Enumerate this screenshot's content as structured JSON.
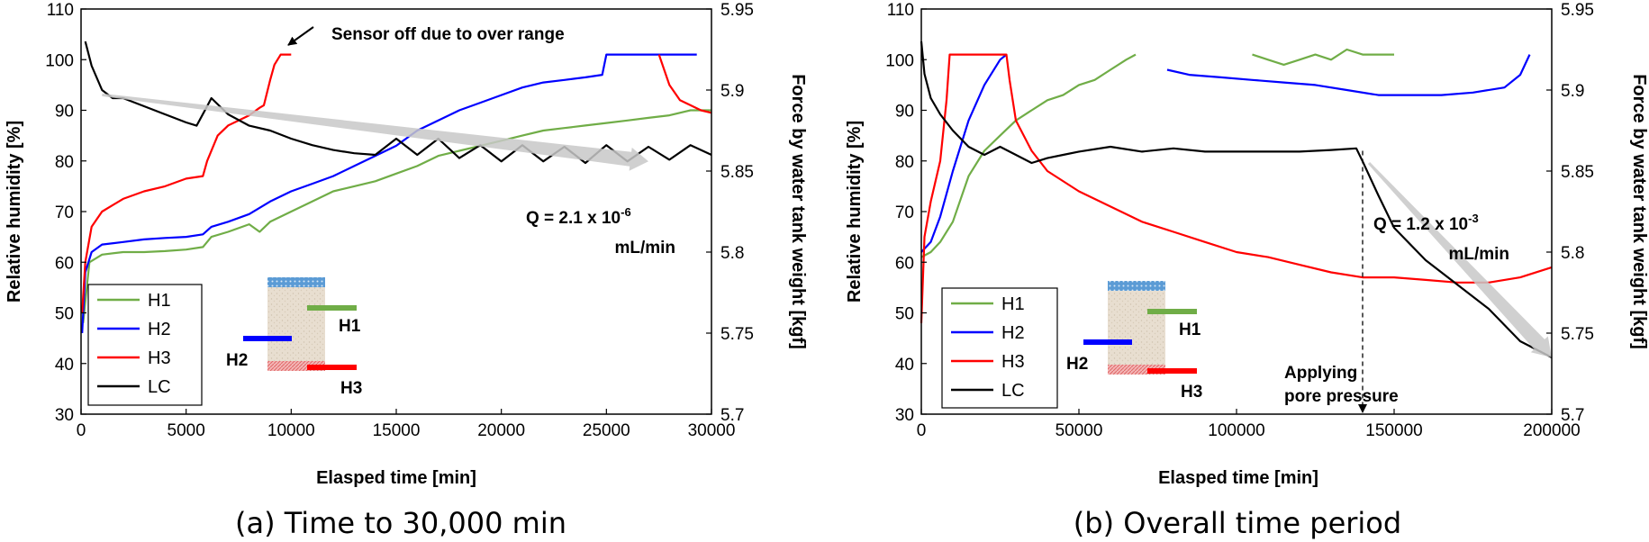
{
  "chart_data": [
    {
      "type": "line",
      "caption": "(a) Time to 30,000 min",
      "xlabel": "Elasped time [min]",
      "ylabel": "Relative humidity [%]",
      "y2label": "Force by water tank weight [kgf]",
      "xlim": [
        0,
        30000
      ],
      "ylim": [
        30,
        110
      ],
      "y2lim": [
        5.7,
        5.95
      ],
      "x_ticks": [
        "0",
        "5000",
        "10000",
        "15000",
        "20000",
        "25000",
        "30000"
      ],
      "y_ticks": [
        "30",
        "40",
        "50",
        "60",
        "70",
        "80",
        "90",
        "100",
        "110"
      ],
      "y2_ticks": [
        "5.7",
        "5.75",
        "5.8",
        "5.85",
        "5.9",
        "5.95"
      ],
      "grid": false,
      "legend": {
        "position": "bottom-left",
        "entries": [
          "H1",
          "H2",
          "H3",
          "LC"
        ]
      },
      "sensor_labels": [
        "H1",
        "H2",
        "H3"
      ],
      "annotations": {
        "note": "Sensor off due to over range",
        "q_main": "Q = 2.1 x 10",
        "q_exp": "-6",
        "q_unit": "mL/min"
      },
      "series": [
        {
          "name": "H1",
          "color": "#70ad47",
          "axis": "left",
          "x": [
            100,
            400,
            1000,
            2000,
            3000,
            4000,
            5000,
            5800,
            6200,
            7000,
            8000,
            8500,
            9000,
            10000,
            11000,
            12000,
            13000,
            14000,
            15000,
            16000,
            17000,
            18000,
            19000,
            20000,
            21000,
            22000,
            23000,
            24000,
            25000,
            26000,
            27000,
            28000,
            29000,
            30000
          ],
          "y": [
            48,
            60,
            61.5,
            62,
            62,
            62.2,
            62.5,
            63,
            65,
            66,
            67.5,
            66,
            68,
            70,
            72,
            74,
            75,
            76,
            77.5,
            79,
            81,
            82,
            83,
            84,
            85,
            86,
            86.5,
            87,
            87.5,
            88,
            88.5,
            89,
            90,
            90
          ]
        },
        {
          "name": "H2",
          "color": "#0000ff",
          "axis": "left",
          "x": [
            50,
            200,
            500,
            1000,
            2000,
            3000,
            4000,
            5000,
            5800,
            6200,
            7000,
            8000,
            9000,
            10000,
            11000,
            12000,
            13000,
            14000,
            15000,
            16000,
            17000,
            18000,
            19000,
            20000,
            21000,
            22000,
            23000,
            24000,
            24800,
            25000,
            26000,
            27000,
            28000,
            29000,
            29300
          ],
          "y": [
            46,
            58,
            62,
            63.5,
            64,
            64.5,
            64.8,
            65,
            65.5,
            67,
            68,
            69.5,
            72,
            74,
            75.5,
            77,
            79,
            81,
            83,
            86,
            88,
            90,
            91.5,
            93,
            94.5,
            95.5,
            96,
            96.5,
            97,
            101,
            101,
            101,
            101,
            101,
            101
          ]
        },
        {
          "name": "H3",
          "color": "#ff0000",
          "axis": "left",
          "x": [
            50,
            200,
            500,
            1000,
            2000,
            3000,
            4000,
            5000,
            5800,
            6000,
            6500,
            7000,
            8000,
            8500,
            8700,
            9000,
            9200,
            9500,
            9800,
            10000
          ],
          "y": [
            50,
            60,
            67,
            70,
            72.5,
            74,
            75,
            76.5,
            77,
            80,
            85,
            87,
            89,
            90.5,
            91,
            96,
            99,
            101,
            101,
            101
          ]
        },
        {
          "name": "H3 (late)",
          "color": "#ff0000",
          "axis": "left",
          "x": [
            27500,
            28000,
            28500,
            29000,
            29500,
            30000
          ],
          "y": [
            101,
            95,
            92,
            91,
            90,
            89.5
          ]
        },
        {
          "name": "LC",
          "color": "#000000",
          "axis": "right",
          "x": [
            200,
            500,
            1000,
            1500,
            2000,
            3000,
            4000,
            5000,
            5500,
            6000,
            6200,
            7000,
            8000,
            9000,
            10000,
            11000,
            12000,
            13000,
            14000,
            15000,
            16000,
            17000,
            18000,
            19000,
            20000,
            21000,
            22000,
            23000,
            24000,
            25000,
            26000,
            27000,
            28000,
            29000,
            30000
          ],
          "y": [
            5.93,
            5.915,
            5.9,
            5.895,
            5.895,
            5.89,
            5.885,
            5.88,
            5.878,
            5.89,
            5.895,
            5.885,
            5.878,
            5.875,
            5.87,
            5.866,
            5.863,
            5.861,
            5.86,
            5.87,
            5.86,
            5.87,
            5.858,
            5.866,
            5.856,
            5.866,
            5.856,
            5.865,
            5.855,
            5.866,
            5.856,
            5.865,
            5.857,
            5.866,
            5.86
          ]
        }
      ],
      "trend_arrow": {
        "axis": "right",
        "from": [
          1000,
          5.897
        ],
        "to": [
          27000,
          5.856
        ]
      }
    },
    {
      "type": "line",
      "caption": "(b) Overall time period",
      "xlabel": "Elasped time [min]",
      "ylabel": "Relative humidity [%]",
      "y2label": "Force by water tank weight [kgf]",
      "xlim": [
        0,
        200000
      ],
      "ylim": [
        30,
        110
      ],
      "y2lim": [
        5.7,
        5.95
      ],
      "x_ticks": [
        "0",
        "50000",
        "100000",
        "150000",
        "200000"
      ],
      "y_ticks": [
        "30",
        "40",
        "50",
        "60",
        "70",
        "80",
        "90",
        "100",
        "110"
      ],
      "y2_ticks": [
        "5.7",
        "5.75",
        "5.8",
        "5.85",
        "5.9",
        "5.95"
      ],
      "grid": false,
      "legend": {
        "position": "bottom-left",
        "entries": [
          "H1",
          "H2",
          "H3",
          "LC"
        ]
      },
      "sensor_labels": [
        "H1",
        "H2",
        "H3"
      ],
      "annotations": {
        "q_main": "Q = 1.2 x 10",
        "q_exp": "-3",
        "q_unit": "mL/min",
        "pore_line1": "Applying",
        "pore_line2": "pore pressure",
        "pore_x": 140000
      },
      "series": [
        {
          "name": "H1",
          "color": "#70ad47",
          "axis": "left",
          "x": [
            0,
            3000,
            6000,
            10000,
            15000,
            20000,
            25000,
            30000,
            35000,
            40000,
            45000,
            50000,
            55000,
            60000,
            65000,
            68000
          ],
          "y": [
            61,
            62,
            64,
            68,
            77,
            82,
            85,
            88,
            90,
            92,
            93,
            95,
            96,
            98,
            100,
            101
          ]
        },
        {
          "name": "H1 (late)",
          "color": "#70ad47",
          "axis": "left",
          "x": [
            105000,
            110000,
            115000,
            120000,
            125000,
            130000,
            135000,
            140000,
            145000,
            150000
          ],
          "y": [
            101,
            100,
            99,
            100,
            101,
            100,
            102,
            101,
            101,
            101
          ]
        },
        {
          "name": "H2",
          "color": "#0000ff",
          "axis": "left",
          "x": [
            0,
            3000,
            6000,
            10000,
            15000,
            20000,
            25000,
            27000
          ],
          "y": [
            62,
            64,
            69,
            78,
            88,
            95,
            100,
            101
          ]
        },
        {
          "name": "H2 (late)",
          "color": "#0000ff",
          "axis": "left",
          "x": [
            78000,
            85000,
            95000,
            105000,
            115000,
            125000,
            135000,
            145000,
            155000,
            165000,
            175000,
            185000,
            190000,
            193000
          ],
          "y": [
            98,
            97,
            96.5,
            96,
            95.5,
            95,
            94,
            93,
            93,
            93,
            93.5,
            94.5,
            97,
            101
          ]
        },
        {
          "name": "H3",
          "color": "#ff0000",
          "axis": "left",
          "x": [
            0,
            1000,
            3000,
            6000,
            8000,
            9000,
            10000,
            27000,
            28000,
            30000,
            35000,
            40000,
            50000,
            60000,
            70000,
            80000,
            90000,
            100000,
            110000,
            120000,
            130000,
            140000,
            150000,
            160000,
            170000,
            180000,
            190000,
            200000
          ],
          "y": [
            48,
            65,
            72,
            80,
            92,
            101,
            101,
            101,
            96,
            88,
            82,
            78,
            74,
            71,
            68,
            66,
            64,
            62,
            61,
            59.5,
            58,
            57,
            57,
            56.5,
            56,
            56,
            57,
            59
          ]
        },
        {
          "name": "LC",
          "color": "#000000",
          "axis": "right",
          "x": [
            0,
            1000,
            3000,
            6000,
            10000,
            15000,
            20000,
            25000,
            30000,
            35000,
            40000,
            45000,
            50000,
            60000,
            70000,
            80000,
            90000,
            100000,
            110000,
            120000,
            130000,
            138000,
            140000,
            145000,
            150000,
            160000,
            170000,
            180000,
            185000,
            190000,
            195000,
            200000
          ],
          "y": [
            5.93,
            5.91,
            5.895,
            5.885,
            5.875,
            5.865,
            5.86,
            5.865,
            5.86,
            5.855,
            5.858,
            5.86,
            5.862,
            5.865,
            5.862,
            5.864,
            5.862,
            5.862,
            5.862,
            5.862,
            5.863,
            5.864,
            5.856,
            5.835,
            5.815,
            5.795,
            5.78,
            5.765,
            5.755,
            5.745,
            5.74,
            5.735
          ]
        }
      ],
      "trend_arrow": {
        "axis": "right",
        "from": [
          142000,
          5.855
        ],
        "to": [
          200000,
          5.735
        ]
      }
    }
  ]
}
